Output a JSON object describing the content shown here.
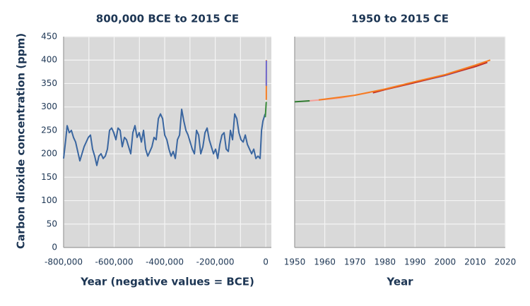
{
  "chart_data": [
    {
      "type": "line",
      "title": "800,000 BCE to 2015 CE",
      "x_label": "Year (negative values = BCE)",
      "y_label": "Carbon dioxide concentration (ppm)",
      "xlim": [
        -800000,
        22000
      ],
      "xticks": [
        {
          "value": -800000,
          "label": "-800,000"
        },
        {
          "value": -600000,
          "label": "-600,000"
        },
        {
          "value": -400000,
          "label": "-400,000"
        },
        {
          "value": -200000,
          "label": "-200,000"
        },
        0
      ],
      "xminor": [
        -700000,
        -500000,
        -300000,
        -100000
      ],
      "ylim": [
        0,
        450
      ],
      "yticks": [
        0,
        50,
        100,
        150,
        200,
        250,
        300,
        350,
        400,
        450
      ],
      "grid": true,
      "series": [
        {
          "color": "#3a66a0",
          "x": [
            -800000,
            -791600,
            -786000,
            -777600,
            -769200,
            -760800,
            -752400,
            -744100,
            -735700,
            -727300,
            -718900,
            -710500,
            -702100,
            -693700,
            -685300,
            -676900,
            -668500,
            -660100,
            -651800,
            -643400,
            -635000,
            -626600,
            -618200,
            -609800,
            -601400,
            -593000,
            -584600,
            -576200,
            -567800,
            -559400,
            -551100,
            -542700,
            -534300,
            -525900,
            -517500,
            -509100,
            -500700,
            -492300,
            -483900,
            -475500,
            -467100,
            -458700,
            -450400,
            -442000,
            -433600,
            -425200,
            -416800,
            -408400,
            -400000,
            -391600,
            -383200,
            -374800,
            -366400,
            -358000,
            -349700,
            -341300,
            -332900,
            -324500,
            -316100,
            -307700,
            -299300,
            -290900,
            -282500,
            -274100,
            -265700,
            -257300,
            -249000,
            -240600,
            -232200,
            -223800,
            -215400,
            -207000,
            -198600,
            -190200,
            -181800,
            -173400,
            -165000,
            -156600,
            -148300,
            -139900,
            -131500,
            -123100,
            -114700,
            -106300,
            -97900,
            -89500,
            -81100,
            -72700,
            -64300,
            -55900,
            -47600,
            -39200,
            -30800,
            -22400,
            -16800,
            -11200,
            -5600,
            -2800
          ],
          "values": [
            190,
            230,
            260,
            245,
            250,
            235,
            225,
            205,
            185,
            200,
            215,
            225,
            235,
            240,
            210,
            195,
            175,
            195,
            200,
            190,
            195,
            210,
            250,
            255,
            245,
            230,
            255,
            250,
            215,
            235,
            230,
            215,
            200,
            245,
            260,
            235,
            245,
            225,
            250,
            210,
            195,
            205,
            215,
            235,
            230,
            275,
            285,
            275,
            240,
            230,
            210,
            195,
            205,
            190,
            230,
            240,
            295,
            270,
            250,
            240,
            225,
            210,
            200,
            250,
            240,
            200,
            215,
            245,
            255,
            230,
            215,
            200,
            210,
            190,
            220,
            240,
            245,
            210,
            205,
            250,
            230,
            285,
            275,
            245,
            230,
            225,
            240,
            220,
            210,
            200,
            210,
            190,
            195,
            190,
            250,
            270,
            280,
            285
          ]
        },
        {
          "color": "#3a8a3a",
          "x": [
            -2000,
            1950
          ],
          "values": [
            278,
            311
          ]
        },
        {
          "color": "#f57c20",
          "x": [
            1958,
            2015
          ],
          "values": [
            315,
            400
          ]
        },
        {
          "color": "#6b6bd6",
          "x": [
            1985,
            2015
          ],
          "values": [
            345,
            399
          ]
        }
      ]
    },
    {
      "type": "line",
      "title": "1950 to 2015 CE",
      "x_label": "Year",
      "xlim": [
        1950,
        2020
      ],
      "xticks": [
        1950,
        1960,
        1970,
        1980,
        1990,
        2000,
        2010,
        2020
      ],
      "ylim": [
        0,
        450
      ],
      "yticks": [
        0,
        50,
        100,
        150,
        200,
        250,
        300,
        350,
        400,
        450
      ],
      "grid": true,
      "series": [
        {
          "color": "#2f7a2f",
          "x": [
            1950,
            1955
          ],
          "values": [
            311,
            313
          ]
        },
        {
          "color": "#f4a09a",
          "x": [
            1955,
            1965,
            1975
          ],
          "values": [
            313,
            319,
            331
          ]
        },
        {
          "color": "#6b6bd6",
          "x": [
            1984,
            1990,
            2000,
            2010,
            2014
          ],
          "values": [
            343,
            353,
            367,
            387,
            396
          ]
        },
        {
          "color": "#c0302a",
          "x": [
            1976,
            1980,
            1990,
            2000,
            2010,
            2014
          ],
          "values": [
            330,
            337,
            352,
            368,
            386,
            395
          ]
        },
        {
          "color": "#f57c20",
          "x": [
            1958,
            1970,
            1980,
            1990,
            2000,
            2010,
            2015
          ],
          "values": [
            315,
            325,
            338,
            354,
            369,
            389,
            400
          ]
        }
      ]
    }
  ]
}
